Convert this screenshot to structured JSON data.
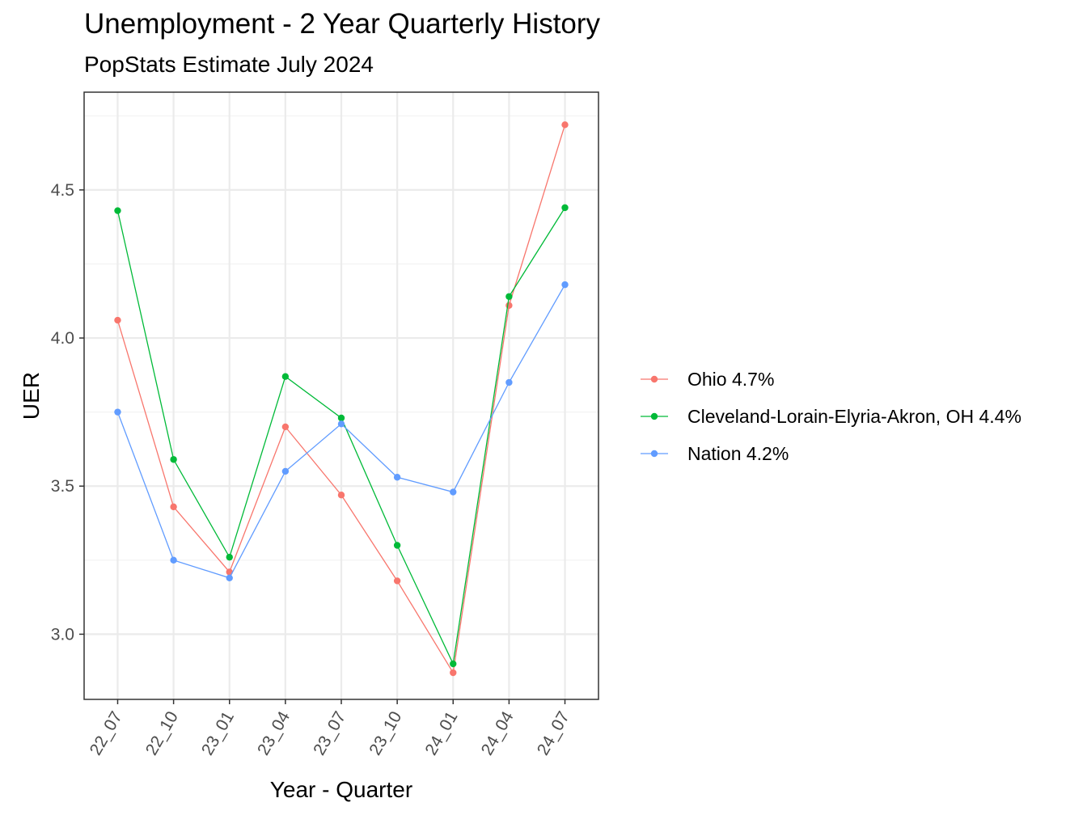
{
  "chart_data": {
    "type": "line",
    "title": "Unemployment - 2 Year Quarterly History",
    "subtitle": "PopStats Estimate July 2024",
    "xlabel": "Year - Quarter",
    "ylabel": "UER",
    "categories": [
      "22_07",
      "22_10",
      "23_01",
      "23_04",
      "23_07",
      "23_10",
      "24_01",
      "24_04",
      "24_07"
    ],
    "ylim": [
      2.78,
      4.83
    ],
    "yticks": [
      3.0,
      3.5,
      4.0,
      4.5
    ],
    "ytick_labels": [
      "3.0",
      "3.5",
      "4.0",
      "4.5"
    ],
    "grid": true,
    "legend_position": "right",
    "series": [
      {
        "name": "Ohio 4.7%",
        "color": "#F8766D",
        "values": [
          4.06,
          3.43,
          3.21,
          3.7,
          3.47,
          3.18,
          2.87,
          4.11,
          4.72
        ]
      },
      {
        "name": "Cleveland-Lorain-Elyria-Akron, OH 4.4%",
        "color": "#00BA38",
        "values": [
          4.43,
          3.59,
          3.26,
          3.87,
          3.73,
          3.3,
          2.9,
          4.14,
          4.44
        ]
      },
      {
        "name": "Nation 4.2%",
        "color": "#619CFF",
        "values": [
          3.75,
          3.25,
          3.19,
          3.55,
          3.71,
          3.53,
          3.48,
          3.85,
          4.18
        ]
      }
    ]
  }
}
